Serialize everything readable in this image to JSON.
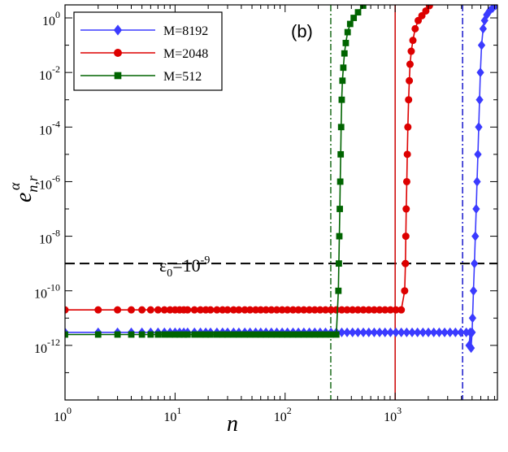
{
  "chart_data": {
    "type": "line",
    "panel_label": "(b)",
    "xlabel": "n",
    "ylabel": {
      "base": "e",
      "sub": "n,r",
      "sup": "α"
    },
    "x_scale": "log",
    "y_scale": "log",
    "xlim": [
      1,
      8500
    ],
    "ylim": [
      1e-14,
      3
    ],
    "x_ticks": [
      {
        "value": 1,
        "base": "10",
        "exp": "0"
      },
      {
        "value": 10,
        "base": "10",
        "exp": "1"
      },
      {
        "value": 100,
        "base": "10",
        "exp": "2"
      },
      {
        "value": 1000,
        "base": "10",
        "exp": "3"
      }
    ],
    "y_ticks": [
      {
        "value": 1e-12,
        "base": "10",
        "exp": "-12"
      },
      {
        "value": 1e-10,
        "base": "10",
        "exp": "-10"
      },
      {
        "value": 1e-08,
        "base": "10",
        "exp": "-8"
      },
      {
        "value": 1e-06,
        "base": "10",
        "exp": "-6"
      },
      {
        "value": 0.0001,
        "base": "10",
        "exp": "-4"
      },
      {
        "value": 0.01,
        "base": "10",
        "exp": "-2"
      },
      {
        "value": 1,
        "base": "10",
        "exp": "0"
      }
    ],
    "threshold": {
      "value": 1e-09,
      "label_base": "ε",
      "label_sub": "0",
      "label_eq": "=10",
      "label_exp": "-9",
      "style": "dashed",
      "color": "#000000"
    },
    "vertical_lines": [
      {
        "x": 260,
        "color": "#1a6b1a",
        "style": "dashdot"
      },
      {
        "x": 1000,
        "color": "#cc0000",
        "style": "solid"
      },
      {
        "x": 4100,
        "color": "#1a1acc",
        "style": "dashdot"
      }
    ],
    "legend": {
      "position": "top-left"
    },
    "series": [
      {
        "name": "M=8192",
        "color": "#3b3bff",
        "marker": "diamond",
        "plateau": 3e-12,
        "plateau_until": 5000,
        "rise": [
          [
            4700,
            1e-12
          ],
          [
            4800,
            3e-12
          ],
          [
            4900,
            8e-13
          ],
          [
            5000,
            3e-12
          ],
          [
            5050,
            1e-11
          ],
          [
            5150,
            1e-10
          ],
          [
            5250,
            1e-09
          ],
          [
            5350,
            1e-08
          ],
          [
            5450,
            1e-07
          ],
          [
            5550,
            1e-06
          ],
          [
            5650,
            1e-05
          ],
          [
            5750,
            0.0001
          ],
          [
            5850,
            0.001
          ],
          [
            5950,
            0.01
          ],
          [
            6100,
            0.1
          ],
          [
            6300,
            0.4
          ],
          [
            6500,
            0.8
          ],
          [
            6800,
            1.3
          ],
          [
            7200,
            1.8
          ],
          [
            7700,
            2.3
          ],
          [
            8192,
            2.9
          ]
        ]
      },
      {
        "name": "M=2048",
        "color": "#dd0000",
        "marker": "circle",
        "plateau": 2e-11,
        "plateau_until": 1200,
        "rise": [
          [
            1220,
            1e-10
          ],
          [
            1240,
            1e-09
          ],
          [
            1250,
            1e-08
          ],
          [
            1260,
            1e-07
          ],
          [
            1275,
            1e-06
          ],
          [
            1290,
            1e-05
          ],
          [
            1305,
            0.0001
          ],
          [
            1325,
            0.001
          ],
          [
            1345,
            0.005
          ],
          [
            1365,
            0.02
          ],
          [
            1400,
            0.06
          ],
          [
            1450,
            0.15
          ],
          [
            1520,
            0.4
          ],
          [
            1620,
            0.8
          ],
          [
            1750,
            1.2
          ],
          [
            1900,
            1.8
          ],
          [
            2048,
            2.8
          ]
        ]
      },
      {
        "name": "M=512",
        "color": "#006400",
        "marker": "square",
        "plateau": 2.5e-12,
        "plateau_until": 300,
        "rise": [
          [
            305,
            1e-10
          ],
          [
            308,
            1e-09
          ],
          [
            311,
            1e-08
          ],
          [
            314,
            1e-07
          ],
          [
            317,
            1e-06
          ],
          [
            320,
            1e-05
          ],
          [
            323,
            0.0001
          ],
          [
            327,
            0.001
          ],
          [
            332,
            0.005
          ],
          [
            338,
            0.015
          ],
          [
            346,
            0.05
          ],
          [
            356,
            0.12
          ],
          [
            370,
            0.3
          ],
          [
            390,
            0.6
          ],
          [
            420,
            1.0
          ],
          [
            460,
            1.6
          ],
          [
            512,
            2.8
          ]
        ]
      }
    ]
  }
}
